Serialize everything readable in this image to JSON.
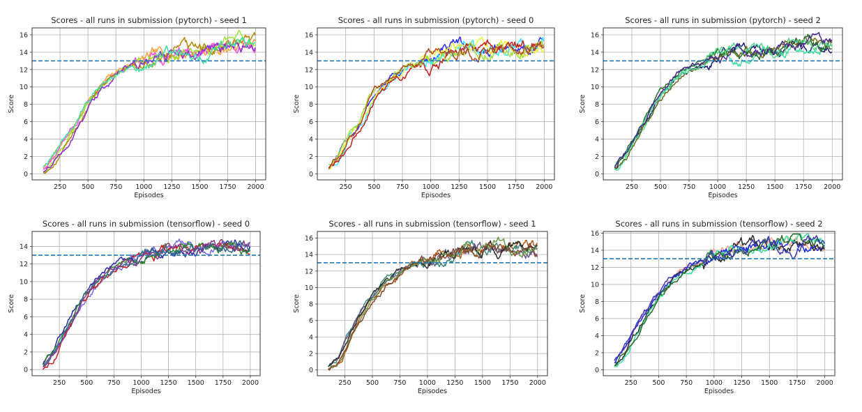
{
  "figure": {
    "chart_data": [
      {
        "type": "line",
        "title": "Scores - all runs in submission (pytorch) - seed 1",
        "xlabel": "Episodes",
        "ylabel": "Score",
        "xlim": [
          0,
          2090
        ],
        "ylim": [
          -0.7,
          16.8
        ],
        "xticks": [
          250,
          500,
          750,
          1000,
          1250,
          1500,
          1750,
          2000
        ],
        "yticks": [
          0,
          2,
          4,
          6,
          8,
          10,
          12,
          14,
          16
        ],
        "grid": true,
        "reference_line": {
          "y": 13,
          "style": "dashed",
          "color": "#1f77b4"
        },
        "series_colors": [
          "#f3a43b",
          "#ff4fd8",
          "#9be22f",
          "#b8860b",
          "#8e2bd6",
          "#3fe0a0"
        ],
        "curve": {
          "x": [
            100,
            200,
            300,
            400,
            500,
            600,
            700,
            800,
            900,
            1000,
            1100,
            1200,
            1300,
            1400,
            1500,
            1600,
            1700,
            1800,
            1900,
            2000
          ],
          "y": [
            0.3,
            1.8,
            3.6,
            5.6,
            8.0,
            9.8,
            11.0,
            12.2,
            12.9,
            13.2,
            13.4,
            13.8,
            14.1,
            14.2,
            14.4,
            14.5,
            14.7,
            14.9,
            15.1,
            15.0
          ]
        },
        "noise": 0.35,
        "noise_late": 0.75
      },
      {
        "type": "line",
        "title": "Scores - all runs in submission (pytorch) - seed 0",
        "xlabel": "Episodes",
        "ylabel": "Score",
        "xlim": [
          0,
          2090
        ],
        "ylim": [
          -0.7,
          16.8
        ],
        "xticks": [
          250,
          500,
          750,
          1000,
          1250,
          1500,
          1750,
          2000
        ],
        "yticks": [
          0,
          2,
          4,
          6,
          8,
          10,
          12,
          14,
          16
        ],
        "grid": true,
        "reference_line": {
          "y": 13,
          "style": "dashed",
          "color": "#1f77b4"
        },
        "series_colors": [
          "#2a2aff",
          "#3fe8ff",
          "#f0f040",
          "#c81e1e",
          "#a3e03a",
          "#b04a20"
        ],
        "curve": {
          "x": [
            100,
            200,
            300,
            400,
            500,
            600,
            700,
            800,
            900,
            1000,
            1100,
            1200,
            1300,
            1400,
            1500,
            1600,
            1700,
            1800,
            1900,
            2000
          ],
          "y": [
            0.6,
            2.0,
            4.3,
            6.0,
            9.0,
            10.3,
            11.2,
            12.4,
            12.9,
            13.4,
            13.8,
            14.3,
            14.5,
            14.5,
            14.5,
            14.6,
            14.7,
            14.8,
            14.9,
            14.9
          ]
        },
        "noise": 0.4,
        "noise_late": 0.8
      },
      {
        "type": "line",
        "title": "Scores - all runs in submission (pytorch) - seed 2",
        "xlabel": "Episodes",
        "ylabel": "Score",
        "xlim": [
          0,
          2090
        ],
        "ylim": [
          -0.7,
          16.8
        ],
        "xticks": [
          250,
          500,
          750,
          1000,
          1250,
          1500,
          1750,
          2000
        ],
        "yticks": [
          0,
          2,
          4,
          6,
          8,
          10,
          12,
          14,
          16
        ],
        "grid": true,
        "reference_line": {
          "y": 13,
          "style": "dashed",
          "color": "#1f77b4"
        },
        "series_colors": [
          "#1a1a7a",
          "#3fe0a0",
          "#6b6b1a",
          "#2d6b2d",
          "#56d68a",
          "#4b2a8a"
        ],
        "curve": {
          "x": [
            100,
            200,
            300,
            400,
            500,
            600,
            700,
            800,
            900,
            1000,
            1100,
            1200,
            1300,
            1400,
            1500,
            1600,
            1700,
            1800,
            1900,
            2000
          ],
          "y": [
            0.6,
            2.3,
            4.5,
            6.7,
            8.9,
            10.6,
            11.8,
            12.5,
            12.9,
            13.5,
            13.9,
            14.1,
            14.2,
            14.3,
            14.4,
            14.8,
            15.3,
            15.3,
            15.1,
            15.0
          ]
        },
        "noise": 0.35,
        "noise_late": 0.7
      },
      {
        "type": "line",
        "title": "Scores - all runs in submission (tensorflow) - seed 0",
        "xlabel": "Episodes",
        "ylabel": "Score",
        "xlim": [
          0,
          2090
        ],
        "ylim": [
          -0.7,
          15.7
        ],
        "xticks": [
          250,
          500,
          750,
          1000,
          1250,
          1500,
          1750,
          2000
        ],
        "yticks": [
          0,
          2,
          4,
          6,
          8,
          10,
          12,
          14
        ],
        "grid": true,
        "reference_line": {
          "y": 13,
          "style": "dashed",
          "color": "#1f77b4"
        },
        "series_colors": [
          "#7a68e8",
          "#c81e1e",
          "#2a2aa8",
          "#2d8a2d",
          "#2f6b8a",
          "#8a3a8a"
        ],
        "curve": {
          "x": [
            100,
            200,
            300,
            400,
            500,
            600,
            700,
            800,
            900,
            1000,
            1100,
            1200,
            1300,
            1400,
            1500,
            1600,
            1700,
            1800,
            1900,
            2000
          ],
          "y": [
            0.2,
            2.0,
            4.3,
            6.6,
            8.6,
            10.0,
            11.2,
            11.9,
            12.5,
            12.9,
            13.3,
            13.5,
            13.7,
            13.9,
            14.0,
            14.0,
            14.0,
            14.0,
            14.1,
            13.8
          ]
        },
        "noise": 0.35,
        "noise_late": 0.6
      },
      {
        "type": "line",
        "title": "Scores - all runs in submission (tensorflow) - seed 1",
        "xlabel": "Episodes",
        "ylabel": "Score",
        "xlim": [
          0,
          2090
        ],
        "ylim": [
          -0.7,
          16.8
        ],
        "xticks": [
          250,
          500,
          750,
          1000,
          1250,
          1500,
          1750,
          2000
        ],
        "yticks": [
          0,
          2,
          4,
          6,
          8,
          10,
          12,
          14,
          16
        ],
        "grid": true,
        "reference_line": {
          "y": 13,
          "style": "dashed",
          "color": "#1f77b4"
        },
        "series_colors": [
          "#b05a1e",
          "#3d8a7a",
          "#6a5a8a",
          "#2a2a2a",
          "#6a9a4a",
          "#8a4a2a"
        ],
        "curve": {
          "x": [
            100,
            200,
            300,
            400,
            500,
            600,
            700,
            800,
            900,
            1000,
            1100,
            1200,
            1300,
            1400,
            1500,
            1600,
            1700,
            1800,
            1900,
            2000
          ],
          "y": [
            0.2,
            1.3,
            4.3,
            6.8,
            8.8,
            10.2,
            11.4,
            12.5,
            13.0,
            13.3,
            13.9,
            14.2,
            14.5,
            14.6,
            14.7,
            14.9,
            14.9,
            14.9,
            14.8,
            14.6
          ]
        },
        "noise": 0.35,
        "noise_late": 0.7
      },
      {
        "type": "line",
        "title": "Scores - all runs in submission (tensorflow) - seed 2",
        "xlabel": "Episodes",
        "ylabel": "Score",
        "xlim": [
          0,
          2090
        ],
        "ylim": [
          -0.7,
          16.2
        ],
        "xticks": [
          250,
          500,
          750,
          1000,
          1250,
          1500,
          1750,
          2000
        ],
        "yticks": [
          0,
          2,
          4,
          6,
          8,
          10,
          12,
          14,
          16
        ],
        "grid": true,
        "reference_line": {
          "y": 13,
          "style": "dashed",
          "color": "#1f77b4"
        },
        "series_colors": [
          "#f5a896",
          "#1a2ae0",
          "#2a2a2a",
          "#3fe0a0",
          "#2d6b2d",
          "#3a3ab8"
        ],
        "curve": {
          "x": [
            100,
            200,
            300,
            400,
            500,
            600,
            700,
            800,
            900,
            1000,
            1100,
            1200,
            1300,
            1400,
            1500,
            1600,
            1700,
            1800,
            1900,
            2000
          ],
          "y": [
            0.5,
            2.2,
            4.5,
            6.8,
            8.5,
            9.9,
            11.3,
            12.1,
            12.7,
            13.3,
            13.8,
            14.1,
            14.4,
            14.6,
            14.7,
            14.8,
            14.9,
            14.9,
            14.7,
            14.5
          ]
        },
        "noise": 0.35,
        "noise_late": 0.7
      }
    ]
  }
}
